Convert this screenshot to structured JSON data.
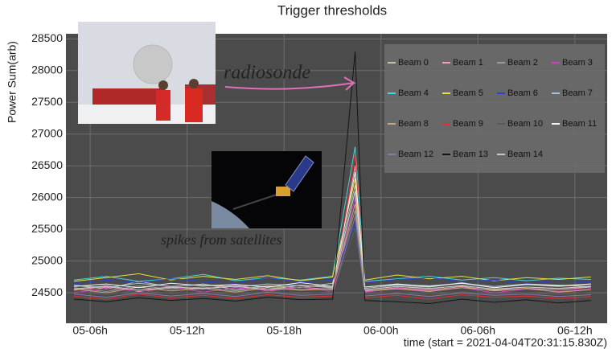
{
  "chart_data": {
    "type": "line",
    "title": "Trigger thresholds",
    "ylabel": "Power Sum(arb)",
    "xlabel": "time (start = 2021-04-04T20:31:15.830Z)",
    "x": [
      5,
      7,
      9,
      11,
      13,
      15,
      17,
      19,
      21,
      22.4,
      23,
      25,
      27,
      29,
      31,
      33,
      35,
      37
    ],
    "xlim": [
      4.5,
      38.0
    ],
    "ylim": [
      24020,
      28580
    ],
    "xticks": [
      {
        "value": 6,
        "label": "05-06h"
      },
      {
        "value": 12,
        "label": "05-12h"
      },
      {
        "value": 18,
        "label": "05-18h"
      },
      {
        "value": 24,
        "label": "06-00h"
      },
      {
        "value": 30,
        "label": "06-06h"
      },
      {
        "value": 36,
        "label": "06-12h"
      }
    ],
    "yticks": [
      24500,
      25000,
      25500,
      26000,
      26500,
      27000,
      27500,
      28000,
      28500
    ],
    "grid": true,
    "legend_loc": "upper right",
    "annotations": [
      {
        "text": "radiosonde",
        "color": "#e070b8"
      },
      {
        "text": "spikes from satellites",
        "color": "#40c8c8"
      }
    ],
    "series": [
      {
        "name": "Beam 0",
        "color": "#b8c8a8",
        "values": [
          24620,
          24560,
          24680,
          24590,
          24640,
          24550,
          24610,
          24580,
          24650,
          26200,
          24570,
          24620,
          24590,
          24660,
          24580,
          24630,
          24600,
          24640
        ]
      },
      {
        "name": "Beam 1",
        "color": "#f0a0b0",
        "values": [
          24540,
          24600,
          24520,
          24580,
          24560,
          24620,
          24530,
          24590,
          24550,
          26500,
          24520,
          24580,
          24540,
          24600,
          24530,
          24570,
          24550,
          24590
        ]
      },
      {
        "name": "Beam 2",
        "color": "#9a9a9a",
        "values": [
          24580,
          24520,
          24610,
          24560,
          24590,
          24530,
          24600,
          24550,
          24570,
          25800,
          24540,
          24600,
          24560,
          24620,
          24550,
          24590,
          24570,
          24610
        ]
      },
      {
        "name": "Beam 3",
        "color": "#d040c0",
        "values": [
          24500,
          24570,
          24530,
          24600,
          24510,
          24580,
          24540,
          24590,
          24520,
          26000,
          24510,
          24570,
          24530,
          24580,
          24500,
          24560,
          24520,
          24570
        ]
      },
      {
        "name": "Beam 4",
        "color": "#40d8d8",
        "values": [
          24700,
          24760,
          24680,
          24720,
          24790,
          24690,
          24740,
          24700,
          24760,
          26800,
          24680,
          24720,
          24760,
          24700,
          24740,
          24690,
          24730,
          24710
        ]
      },
      {
        "name": "Beam 5",
        "color": "#e8e040",
        "values": [
          24680,
          24740,
          24800,
          24700,
          24760,
          24710,
          24770,
          24690,
          24750,
          26300,
          24700,
          24780,
          24720,
          24760,
          24690,
          24740,
          24710,
          24750
        ]
      },
      {
        "name": "Beam 6",
        "color": "#3040d0",
        "values": [
          24640,
          24700,
          24660,
          24720,
          24680,
          24650,
          24740,
          24670,
          24700,
          25600,
          24660,
          24710,
          24740,
          24680,
          24700,
          24650,
          24690,
          24670
        ]
      },
      {
        "name": "Beam 7",
        "color": "#a8c0d8",
        "values": [
          24620,
          24580,
          24650,
          24600,
          24630,
          24590,
          24640,
          24610,
          24600,
          26100,
          24590,
          24630,
          24610,
          24650,
          24600,
          24640,
          24620,
          24600
        ]
      },
      {
        "name": "Beam 8",
        "color": "#c8a878",
        "values": [
          24560,
          24500,
          24590,
          24530,
          24570,
          24510,
          24580,
          24540,
          24560,
          25900,
          24530,
          24560,
          24520,
          24580,
          24540,
          24570,
          24510,
          24550
        ]
      },
      {
        "name": "Beam 9",
        "color": "#e03030",
        "values": [
          24450,
          24400,
          24480,
          24420,
          24460,
          24410,
          24470,
          24430,
          24450,
          26700,
          24420,
          24460,
          24400,
          24470,
          24430,
          24450,
          24410,
          24440
        ]
      },
      {
        "name": "Beam 10",
        "color": "#5a5a5a",
        "values": [
          24520,
          24470,
          24540,
          24490,
          24510,
          24460,
          24530,
          24480,
          24520,
          25500,
          24470,
          24510,
          24460,
          24520,
          24480,
          24500,
          24470,
          24510
        ]
      },
      {
        "name": "Beam 11",
        "color": "#f4f4f4",
        "values": [
          24600,
          24640,
          24580,
          24650,
          24610,
          24630,
          24590,
          24660,
          24600,
          26400,
          24590,
          24640,
          24600,
          24650,
          24580,
          24630,
          24610,
          24640
        ]
      },
      {
        "name": "Beam 12",
        "color": "#8878a8",
        "values": [
          24480,
          24430,
          24500,
          24450,
          24490,
          24440,
          24510,
          24460,
          24480,
          25700,
          24450,
          24490,
          24440,
          24500,
          24460,
          24480,
          24440,
          24470
        ]
      },
      {
        "name": "Beam 13",
        "color": "#151515",
        "values": [
          24400,
          24360,
          24420,
          24380,
          24410,
          24370,
          24430,
          24390,
          24400,
          28300,
          24380,
          24360,
          24330,
          24400,
          24350,
          24390,
          24340,
          24380
        ]
      },
      {
        "name": "Beam 14",
        "color": "#c8c8c8",
        "values": [
          24560,
          24610,
          24540,
          24590,
          24570,
          24600,
          24550,
          24620,
          24580,
          26100,
          24550,
          24600,
          24570,
          24610,
          24560,
          24590,
          24570,
          24600
        ]
      }
    ]
  }
}
